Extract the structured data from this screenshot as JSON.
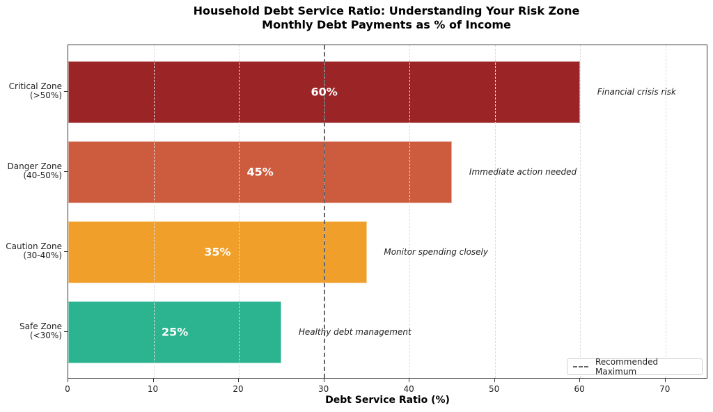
{
  "chart_data": {
    "type": "bar",
    "orientation": "horizontal",
    "title": "Household Debt Service Ratio: Understanding Your Risk Zone",
    "subtitle": "Monthly Debt Payments as % of Income",
    "xlabel": "Debt Service Ratio (%)",
    "ylabel": "",
    "xlim": [
      0,
      75
    ],
    "xticks": [
      "0",
      "10",
      "20",
      "30",
      "40",
      "50",
      "60",
      "70"
    ],
    "grid": "x-dashed",
    "categories": [
      "Critical Zone\n(>50%)",
      "Danger Zone\n(40-50%)",
      "Caution Zone\n(30-40%)",
      "Safe Zone\n(<30%)"
    ],
    "values": [
      60,
      45,
      35,
      25
    ],
    "value_labels": [
      "60%",
      "45%",
      "35%",
      "25%"
    ],
    "annotations": [
      "Financial crisis risk",
      "Immediate action needed",
      "Monitor spending closely",
      "Healthy debt management"
    ],
    "colors": [
      "#9b2426",
      "#cd5c3f",
      "#f0a02a",
      "#2bb48f"
    ],
    "reference_line": {
      "x": 30,
      "style": "dashed",
      "color": "#666666",
      "label": "Recommended Maximum"
    },
    "legend": {
      "position": "lower right",
      "entries": [
        "Recommended Maximum"
      ]
    }
  }
}
